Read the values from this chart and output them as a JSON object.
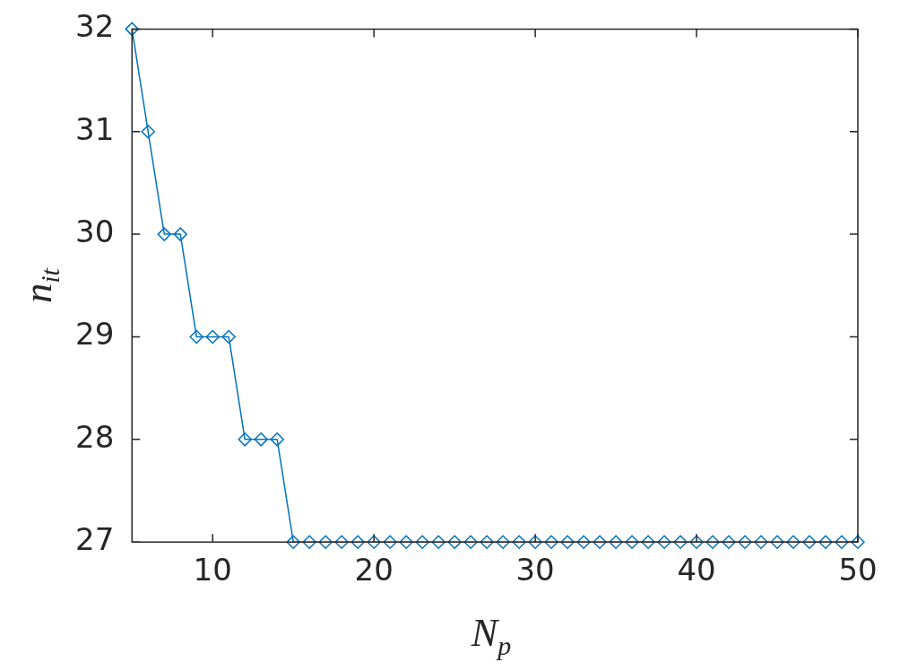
{
  "chart_data": {
    "type": "line",
    "xlabel": "N$_{p}$",
    "ylabel": "n$_{it}$",
    "x": [
      5,
      6,
      7,
      8,
      9,
      10,
      11,
      12,
      13,
      14,
      15,
      16,
      17,
      18,
      19,
      20,
      21,
      22,
      23,
      24,
      25,
      26,
      27,
      28,
      29,
      30,
      31,
      32,
      33,
      34,
      35,
      36,
      37,
      38,
      39,
      40,
      41,
      42,
      43,
      44,
      45,
      46,
      47,
      48,
      49,
      50
    ],
    "values": [
      32,
      31,
      30,
      30,
      29,
      29,
      29,
      28,
      28,
      28,
      27,
      27,
      27,
      27,
      27,
      27,
      27,
      27,
      27,
      27,
      27,
      27,
      27,
      27,
      27,
      27,
      27,
      27,
      27,
      27,
      27,
      27,
      27,
      27,
      27,
      27,
      27,
      27,
      27,
      27,
      27,
      27,
      27,
      27,
      27,
      27
    ],
    "color": "#0072bd",
    "marker": "diamond",
    "xlim": [
      5,
      50
    ],
    "xticks": [
      10,
      20,
      30,
      40,
      50
    ],
    "ylim": [
      27,
      32
    ],
    "yticks": [
      27,
      28,
      29,
      30,
      31,
      32
    ]
  }
}
